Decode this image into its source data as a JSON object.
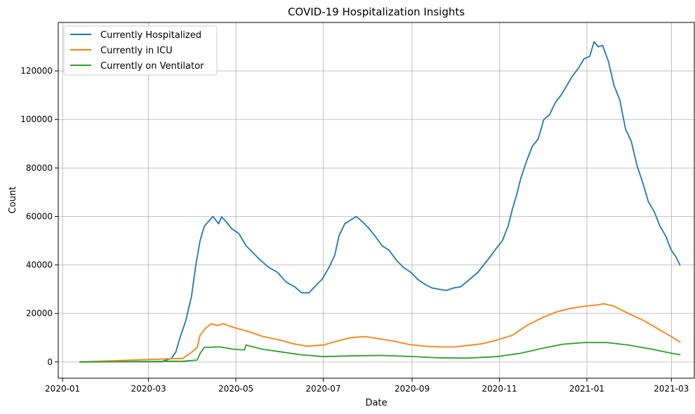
{
  "chart_data": {
    "type": "line",
    "title": "COVID-19 Hospitalization Insights",
    "xlabel": "Date",
    "ylabel": "Count",
    "xlim": [
      "2019-12-29",
      "2021-03-17"
    ],
    "ylim": [
      -6700,
      140000
    ],
    "x_ticks": [
      "2020-01",
      "2020-03",
      "2020-05",
      "2020-07",
      "2020-09",
      "2020-11",
      "2021-01",
      "2021-03"
    ],
    "x_tick_dates": [
      "2020-01-01",
      "2020-03-01",
      "2020-05-01",
      "2020-07-01",
      "2020-09-01",
      "2020-11-01",
      "2021-01-01",
      "2021-03-01"
    ],
    "y_ticks": [
      0,
      20000,
      40000,
      60000,
      80000,
      100000,
      120000
    ],
    "y_tick_labels": [
      "0",
      "20000",
      "40000",
      "60000",
      "80000",
      "100000",
      "120000"
    ],
    "grid": true,
    "legend_position": "top-left",
    "series": [
      {
        "name": "Currently Hospitalized",
        "color": "#1f77b4",
        "points": [
          [
            "2020-01-13",
            0
          ],
          [
            "2020-03-10",
            100
          ],
          [
            "2020-03-17",
            1500
          ],
          [
            "2020-03-20",
            4000
          ],
          [
            "2020-03-23",
            10000
          ],
          [
            "2020-03-27",
            17000
          ],
          [
            "2020-03-31",
            27000
          ],
          [
            "2020-04-03",
            40000
          ],
          [
            "2020-04-06",
            50000
          ],
          [
            "2020-04-09",
            56000
          ],
          [
            "2020-04-12",
            58000
          ],
          [
            "2020-04-15",
            60000
          ],
          [
            "2020-04-19",
            57000
          ],
          [
            "2020-04-21",
            59800
          ],
          [
            "2020-04-24",
            58000
          ],
          [
            "2020-04-28",
            55000
          ],
          [
            "2020-05-03",
            53000
          ],
          [
            "2020-05-08",
            48000
          ],
          [
            "2020-05-13",
            45000
          ],
          [
            "2020-05-18",
            42000
          ],
          [
            "2020-05-24",
            39000
          ],
          [
            "2020-05-30",
            37000
          ],
          [
            "2020-06-05",
            33000
          ],
          [
            "2020-06-11",
            31000
          ],
          [
            "2020-06-16",
            28500
          ],
          [
            "2020-06-21",
            28500
          ],
          [
            "2020-06-25",
            31000
          ],
          [
            "2020-06-30",
            34000
          ],
          [
            "2020-07-05",
            39000
          ],
          [
            "2020-07-09",
            44000
          ],
          [
            "2020-07-12",
            52000
          ],
          [
            "2020-07-16",
            57000
          ],
          [
            "2020-07-20",
            58500
          ],
          [
            "2020-07-24",
            60000
          ],
          [
            "2020-07-28",
            58000
          ],
          [
            "2020-08-02",
            55000
          ],
          [
            "2020-08-06",
            52000
          ],
          [
            "2020-08-11",
            48000
          ],
          [
            "2020-08-16",
            46000
          ],
          [
            "2020-08-21",
            42000
          ],
          [
            "2020-08-26",
            39000
          ],
          [
            "2020-08-31",
            37000
          ],
          [
            "2020-09-05",
            34000
          ],
          [
            "2020-09-10",
            32000
          ],
          [
            "2020-09-15",
            30500
          ],
          [
            "2020-09-20",
            30000
          ],
          [
            "2020-09-25",
            29500
          ],
          [
            "2020-09-30",
            30500
          ],
          [
            "2020-10-05",
            31000
          ],
          [
            "2020-10-09",
            33000
          ],
          [
            "2020-10-13",
            35000
          ],
          [
            "2020-10-17",
            37000
          ],
          [
            "2020-10-21",
            40000
          ],
          [
            "2020-10-25",
            43000
          ],
          [
            "2020-10-30",
            47000
          ],
          [
            "2020-11-03",
            50000
          ],
          [
            "2020-11-07",
            56000
          ],
          [
            "2020-11-10",
            63000
          ],
          [
            "2020-11-13",
            69000
          ],
          [
            "2020-11-16",
            76000
          ],
          [
            "2020-11-20",
            83000
          ],
          [
            "2020-11-24",
            89000
          ],
          [
            "2020-11-28",
            92000
          ],
          [
            "2020-12-02",
            100000
          ],
          [
            "2020-12-06",
            102000
          ],
          [
            "2020-12-10",
            107000
          ],
          [
            "2020-12-14",
            110000
          ],
          [
            "2020-12-18",
            114000
          ],
          [
            "2020-12-22",
            118000
          ],
          [
            "2020-12-26",
            121000
          ],
          [
            "2020-12-30",
            125000
          ],
          [
            "2021-01-03",
            126000
          ],
          [
            "2021-01-06",
            132000
          ],
          [
            "2021-01-09",
            130000
          ],
          [
            "2021-01-12",
            130500
          ],
          [
            "2021-01-16",
            124000
          ],
          [
            "2021-01-20",
            114000
          ],
          [
            "2021-01-24",
            108000
          ],
          [
            "2021-01-28",
            96000
          ],
          [
            "2021-02-01",
            91000
          ],
          [
            "2021-02-05",
            81000
          ],
          [
            "2021-02-09",
            74000
          ],
          [
            "2021-02-13",
            66000
          ],
          [
            "2021-02-17",
            62000
          ],
          [
            "2021-02-21",
            56000
          ],
          [
            "2021-02-25",
            52000
          ],
          [
            "2021-03-01",
            46000
          ],
          [
            "2021-03-04",
            43500
          ],
          [
            "2021-03-07",
            40000
          ]
        ]
      },
      {
        "name": "Currently in ICU",
        "color": "#ff7f0e",
        "points": [
          [
            "2020-01-13",
            0
          ],
          [
            "2020-03-25",
            1500
          ],
          [
            "2020-03-30",
            3500
          ],
          [
            "2020-04-04",
            6000
          ],
          [
            "2020-04-06",
            11000
          ],
          [
            "2020-04-10",
            14000
          ],
          [
            "2020-04-14",
            15800
          ],
          [
            "2020-04-18",
            15000
          ],
          [
            "2020-04-22",
            15800
          ],
          [
            "2020-04-28",
            14500
          ],
          [
            "2020-05-04",
            13500
          ],
          [
            "2020-05-10",
            12500
          ],
          [
            "2020-05-20",
            10500
          ],
          [
            "2020-06-01",
            9000
          ],
          [
            "2020-06-10",
            7500
          ],
          [
            "2020-06-20",
            6500
          ],
          [
            "2020-07-01",
            7000
          ],
          [
            "2020-07-10",
            8500
          ],
          [
            "2020-07-20",
            10000
          ],
          [
            "2020-07-30",
            10500
          ],
          [
            "2020-08-10",
            9500
          ],
          [
            "2020-08-20",
            8500
          ],
          [
            "2020-08-30",
            7200
          ],
          [
            "2020-09-10",
            6500
          ],
          [
            "2020-09-20",
            6200
          ],
          [
            "2020-10-01",
            6200
          ],
          [
            "2020-10-10",
            6800
          ],
          [
            "2020-10-20",
            7500
          ],
          [
            "2020-10-30",
            9000
          ],
          [
            "2020-11-10",
            11000
          ],
          [
            "2020-11-20",
            15000
          ],
          [
            "2020-11-30",
            18000
          ],
          [
            "2020-12-10",
            20500
          ],
          [
            "2020-12-20",
            22000
          ],
          [
            "2020-12-30",
            23000
          ],
          [
            "2021-01-08",
            23500
          ],
          [
            "2021-01-13",
            24000
          ],
          [
            "2021-01-20",
            23000
          ],
          [
            "2021-01-30",
            20000
          ],
          [
            "2021-02-10",
            17000
          ],
          [
            "2021-02-20",
            13500
          ],
          [
            "2021-03-01",
            10500
          ],
          [
            "2021-03-07",
            8200
          ]
        ]
      },
      {
        "name": "Currently on Ventilator",
        "color": "#2ca02c",
        "points": [
          [
            "2020-01-13",
            0
          ],
          [
            "2020-03-25",
            300
          ],
          [
            "2020-04-04",
            800
          ],
          [
            "2020-04-06",
            3500
          ],
          [
            "2020-04-09",
            6000
          ],
          [
            "2020-04-20",
            6200
          ],
          [
            "2020-04-30",
            5200
          ],
          [
            "2020-05-07",
            5000
          ],
          [
            "2020-05-08",
            7000
          ],
          [
            "2020-05-20",
            5200
          ],
          [
            "2020-06-01",
            4200
          ],
          [
            "2020-06-15",
            3000
          ],
          [
            "2020-07-01",
            2200
          ],
          [
            "2020-07-20",
            2500
          ],
          [
            "2020-08-10",
            2700
          ],
          [
            "2020-08-30",
            2300
          ],
          [
            "2020-09-20",
            1700
          ],
          [
            "2020-10-10",
            1600
          ],
          [
            "2020-10-30",
            2200
          ],
          [
            "2020-11-15",
            3500
          ],
          [
            "2020-11-30",
            5500
          ],
          [
            "2020-12-15",
            7300
          ],
          [
            "2020-12-30",
            8000
          ],
          [
            "2021-01-15",
            8000
          ],
          [
            "2021-01-30",
            7000
          ],
          [
            "2021-02-15",
            5300
          ],
          [
            "2021-03-01",
            3600
          ],
          [
            "2021-03-07",
            3000
          ]
        ]
      }
    ]
  }
}
